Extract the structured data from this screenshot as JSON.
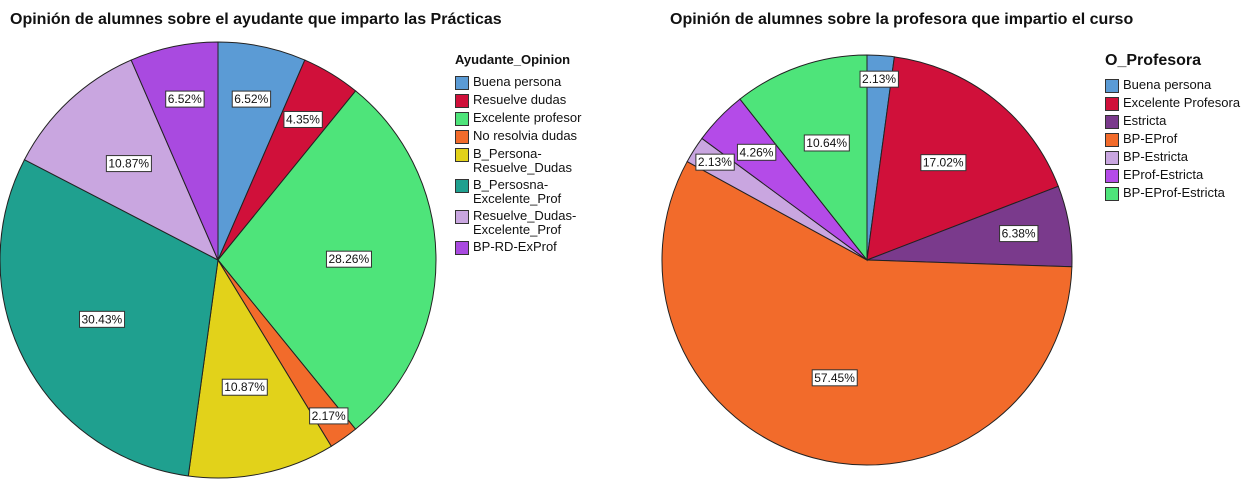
{
  "chart_data": [
    {
      "type": "pie",
      "title": "Opinión de alumnes sobre el ayudante que imparto las Prácticas",
      "legend_title": "Ayudante_Opinion",
      "categories": [
        "Buena persona",
        "Resuelve dudas",
        "Excelente profesor",
        "No resolvia dudas",
        "B_Persona-Resuelve_Dudas",
        "B_Persosna-Excelente_Prof",
        "Resuelve_Dudas-Excelente_Prof",
        "BP-RD-ExProf"
      ],
      "values": [
        6.52,
        4.35,
        28.26,
        2.17,
        10.87,
        30.43,
        10.87,
        6.52
      ],
      "value_labels": [
        "6.52%",
        "4.35%",
        "28.26%",
        "2.17%",
        "10.87%",
        "30.43%",
        "10.87%",
        "6.52%"
      ],
      "colors": [
        "#5b9bd5",
        "#d0103a",
        "#4ee47a",
        "#f26b2b",
        "#e2d21a",
        "#1fa08f",
        "#c9a6e0",
        "#a94ae0"
      ]
    },
    {
      "type": "pie",
      "title": "Opinión de alumnes sobre la profesora que impartio el curso",
      "legend_title": "O_Profesora",
      "categories": [
        "Buena persona",
        "Excelente Profesora",
        "Estricta",
        "BP-EProf",
        "BP-Estricta",
        "EProf-Estricta",
        "BP-EProf-Estricta"
      ],
      "values": [
        2.13,
        17.02,
        6.38,
        57.45,
        2.13,
        4.26,
        10.64
      ],
      "value_labels": [
        "2.13%",
        "17.02%",
        "6.38%",
        "57.45%",
        "2.13%",
        "4.26%",
        "10.64%"
      ],
      "colors": [
        "#5b9bd5",
        "#d0103a",
        "#7a3a8c",
        "#f26b2b",
        "#c9a6e0",
        "#b44be8",
        "#4ee47a"
      ]
    }
  ]
}
